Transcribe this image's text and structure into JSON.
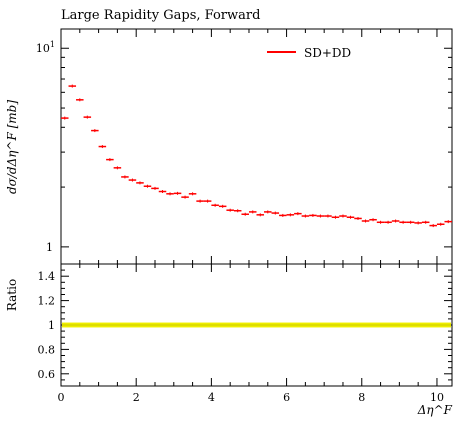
{
  "chart_data": {
    "type": "scatter",
    "title": "Large Rapidity Gaps, Forward",
    "xlabel": "Δη^F",
    "ylabel": "dσ/dΔη^F [mb]",
    "ratio_ylabel": "Ratio",
    "xlim": [
      0,
      10.4
    ],
    "ylim": [
      0.82,
      12.5
    ],
    "yscale": "log",
    "ratio_ylim": [
      0.5,
      1.5
    ],
    "x_ticks": [
      "0",
      "2",
      "4",
      "6",
      "8",
      "10"
    ],
    "y_ticks": [
      "10^1",
      "1"
    ],
    "ratio_ticks": [
      "1.4",
      "1.2",
      "1",
      "0.8",
      "0.6"
    ],
    "legend_position": "top-right",
    "series": [
      {
        "name": "SD+DD",
        "color": "#ff0000",
        "x": [
          0.1,
          0.3,
          0.5,
          0.7,
          0.9,
          1.1,
          1.3,
          1.5,
          1.7,
          1.9,
          2.1,
          2.3,
          2.5,
          2.7,
          2.9,
          3.1,
          3.3,
          3.5,
          3.7,
          3.9,
          4.1,
          4.3,
          4.5,
          4.7,
          4.9,
          5.1,
          5.3,
          5.5,
          5.7,
          5.9,
          6.1,
          6.3,
          6.5,
          6.7,
          6.9,
          7.1,
          7.3,
          7.5,
          7.7,
          7.9,
          8.1,
          8.3,
          8.5,
          8.7,
          8.9,
          9.1,
          9.3,
          9.5,
          9.7,
          9.9,
          10.1,
          10.3
        ],
        "values": [
          4.45,
          6.45,
          5.5,
          4.5,
          3.85,
          3.2,
          2.75,
          2.5,
          2.25,
          2.17,
          2.1,
          2.02,
          1.97,
          1.9,
          1.85,
          1.86,
          1.78,
          1.85,
          1.7,
          1.7,
          1.62,
          1.6,
          1.53,
          1.52,
          1.46,
          1.5,
          1.45,
          1.5,
          1.48,
          1.44,
          1.45,
          1.47,
          1.43,
          1.44,
          1.43,
          1.43,
          1.41,
          1.43,
          1.41,
          1.39,
          1.35,
          1.37,
          1.33,
          1.33,
          1.35,
          1.33,
          1.33,
          1.32,
          1.33,
          1.28,
          1.3,
          1.34
        ]
      }
    ],
    "ratio_band": {
      "low": 0.98,
      "high": 1.02,
      "color": "#eeee00"
    },
    "ratio_line": {
      "value": 1.0,
      "color": "#dddd00"
    }
  }
}
